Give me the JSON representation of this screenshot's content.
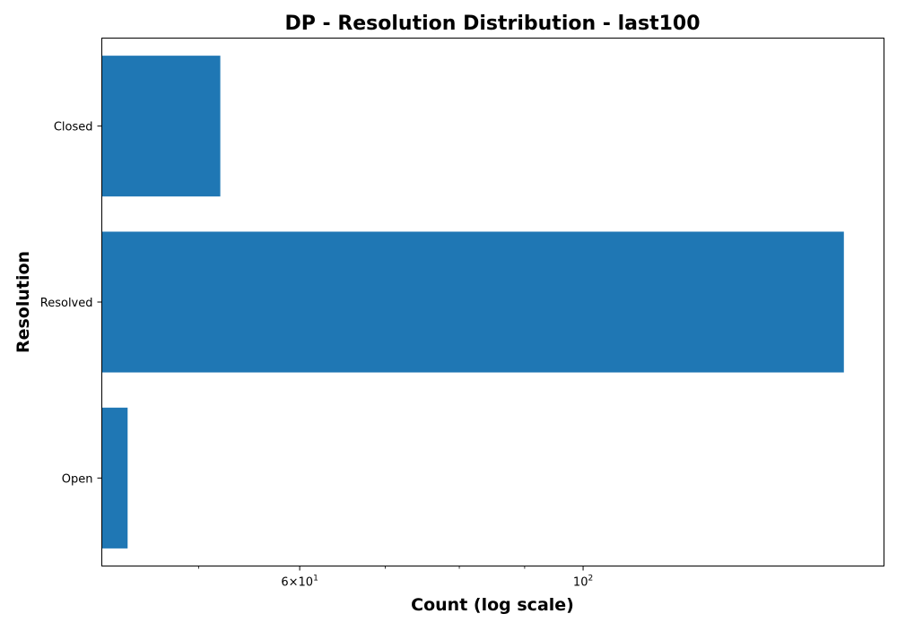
{
  "chart_data": {
    "type": "bar",
    "orientation": "horizontal",
    "title": "DP - Resolution Distribution - last100",
    "xlabel": "Count (log scale)",
    "ylabel": "Resolution",
    "categories": [
      "Closed",
      "Resolved",
      "Open"
    ],
    "values": [
      52,
      160,
      44
    ],
    "x_scale": "log",
    "xlim": [
      42,
      172
    ],
    "x_ticks": [
      {
        "value": 60,
        "label_base": "6",
        "label_times": "×",
        "label_exp_base": "10",
        "label_exp": "1"
      },
      {
        "value": 100,
        "label_base": "",
        "label_times": "",
        "label_exp_base": "10",
        "label_exp": "2"
      }
    ],
    "x_minor_ticks": [
      50,
      70,
      80,
      90
    ],
    "grid": false,
    "colors": {
      "bar": "#1f77b4"
    }
  }
}
